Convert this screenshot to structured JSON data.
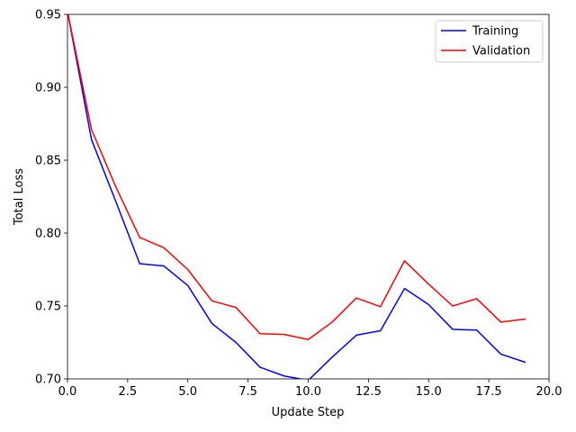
{
  "chart_data": {
    "type": "line",
    "title": "",
    "xlabel": "Update Step",
    "ylabel": "Total Loss",
    "xlim": [
      0,
      20
    ],
    "ylim": [
      0.7,
      0.95
    ],
    "xticks": [
      0.0,
      2.5,
      5.0,
      7.5,
      10.0,
      12.5,
      15.0,
      17.5,
      20.0
    ],
    "xtick_labels": [
      "0.0",
      "2.5",
      "5.0",
      "7.5",
      "10.0",
      "12.5",
      "15.0",
      "17.5",
      "20.0"
    ],
    "yticks": [
      0.7,
      0.75,
      0.8,
      0.85,
      0.9,
      0.95
    ],
    "ytick_labels": [
      "0.70",
      "0.75",
      "0.80",
      "0.85",
      "0.90",
      "0.95"
    ],
    "grid": false,
    "legend_position": "top-right",
    "x": [
      0,
      1,
      2,
      3,
      4,
      5,
      6,
      7,
      8,
      9,
      10,
      11,
      12,
      13,
      14,
      15,
      16,
      17,
      18,
      19
    ],
    "series": [
      {
        "name": "Training",
        "color": "#0000ff",
        "values": [
          0.952,
          0.864,
          0.822,
          0.779,
          0.7775,
          0.764,
          0.738,
          0.725,
          0.708,
          0.702,
          0.699,
          0.715,
          0.73,
          0.733,
          0.762,
          0.751,
          0.734,
          0.7335,
          0.717,
          0.7115
        ]
      },
      {
        "name": "Validation",
        "color": "#ff0000",
        "values": [
          0.952,
          0.871,
          0.832,
          0.797,
          0.79,
          0.775,
          0.7535,
          0.749,
          0.731,
          0.7305,
          0.727,
          0.739,
          0.7555,
          0.7495,
          0.781,
          0.765,
          0.75,
          0.755,
          0.739,
          0.741
        ]
      }
    ]
  }
}
